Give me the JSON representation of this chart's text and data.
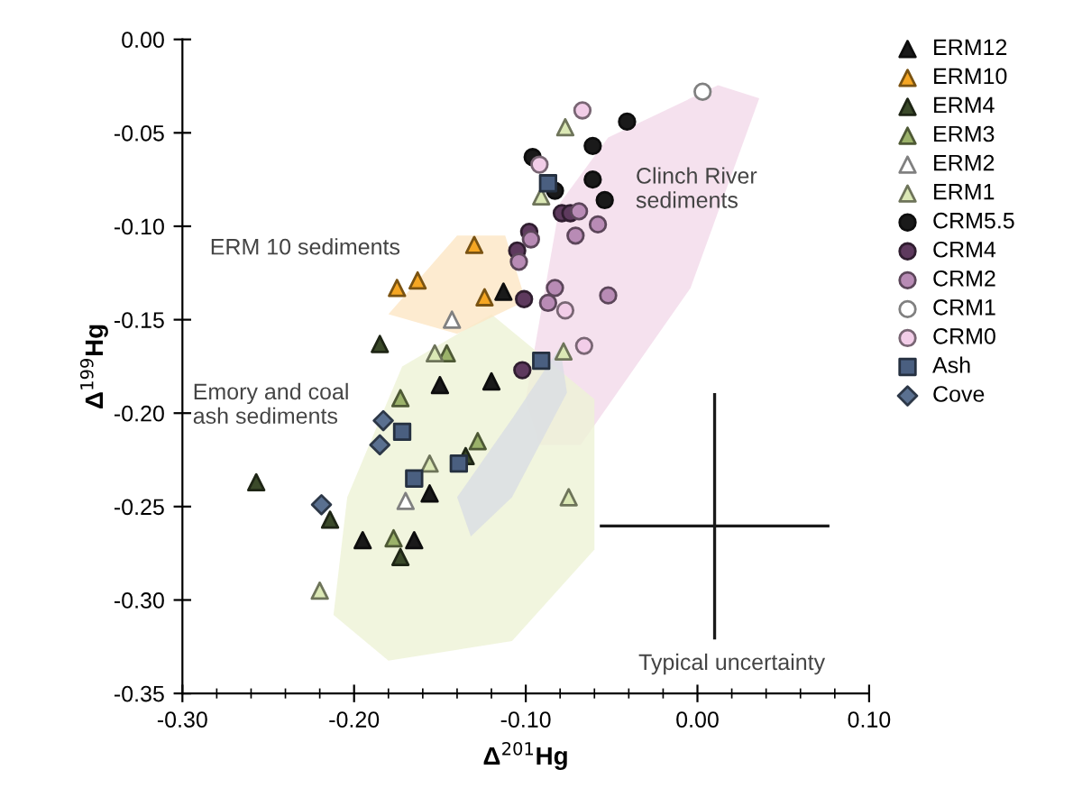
{
  "chart_data": {
    "type": "scatter",
    "xlabel": "Δ$^{201}$Hg",
    "ylabel": "Δ$^{199}$Hg",
    "xlim": [
      -0.3,
      0.1
    ],
    "ylim": [
      -0.35,
      0.0
    ],
    "xticks": [
      {
        "value": -0.3,
        "label": "-0.30"
      },
      {
        "value": -0.28,
        "label": null
      },
      {
        "value": -0.26,
        "label": null
      },
      {
        "value": -0.24,
        "label": null
      },
      {
        "value": -0.22,
        "label": null
      },
      {
        "value": -0.2,
        "label": "-0.20"
      },
      {
        "value": -0.18,
        "label": null
      },
      {
        "value": -0.16,
        "label": null
      },
      {
        "value": -0.14,
        "label": null
      },
      {
        "value": -0.12,
        "label": null
      },
      {
        "value": -0.1,
        "label": "-0.10"
      },
      {
        "value": -0.08,
        "label": null
      },
      {
        "value": -0.06,
        "label": null
      },
      {
        "value": -0.04,
        "label": null
      },
      {
        "value": -0.02,
        "label": null
      },
      {
        "value": 0.0,
        "label": "0.00"
      },
      {
        "value": 0.02,
        "label": null
      },
      {
        "value": 0.04,
        "label": null
      },
      {
        "value": 0.06,
        "label": null
      },
      {
        "value": 0.08,
        "label": null
      },
      {
        "value": 0.1,
        "label": "0.10"
      }
    ],
    "yticks": [
      {
        "value": 0.0,
        "label": "0.00"
      },
      {
        "value": -0.05,
        "label": "-0.05"
      },
      {
        "value": -0.1,
        "label": "-0.10"
      },
      {
        "value": -0.15,
        "label": "-0.15"
      },
      {
        "value": -0.2,
        "label": "-0.20"
      },
      {
        "value": -0.25,
        "label": "-0.25"
      },
      {
        "value": -0.3,
        "label": "-0.30"
      },
      {
        "value": -0.35,
        "label": "-0.35"
      }
    ],
    "legend": "right",
    "grid": false,
    "series": [
      {
        "name": "ERM12",
        "color": "#1a1a1a",
        "marker": "triangle",
        "x": [
          -0.113,
          -0.15,
          -0.12,
          -0.195,
          -0.165,
          -0.156
        ],
        "values": [
          -0.135,
          -0.185,
          -0.183,
          -0.268,
          -0.268,
          -0.243
        ]
      },
      {
        "name": "ERM10",
        "color": "#f5a623",
        "marker": "triangle",
        "x": [
          -0.175,
          -0.163,
          -0.13,
          -0.124
        ],
        "values": [
          -0.133,
          -0.129,
          -0.11,
          -0.138
        ]
      },
      {
        "name": "ERM4",
        "color": "#3b4a2a",
        "marker": "triangle",
        "x": [
          -0.185,
          -0.257,
          -0.214,
          -0.173,
          -0.135
        ],
        "values": [
          -0.163,
          -0.237,
          -0.257,
          -0.277,
          -0.223
        ]
      },
      {
        "name": "ERM3",
        "color": "#9bb26a",
        "marker": "triangle",
        "x": [
          -0.173,
          -0.146,
          -0.128,
          -0.177
        ],
        "values": [
          -0.192,
          -0.168,
          -0.215,
          -0.267
        ]
      },
      {
        "name": "ERM2",
        "color": "#ffffff",
        "marker": "triangle",
        "x": [
          -0.143,
          -0.17
        ],
        "values": [
          -0.15,
          -0.247
        ]
      },
      {
        "name": "ERM1",
        "color": "#dbe8b5",
        "marker": "triangle",
        "x": [
          -0.153,
          -0.156,
          -0.077,
          -0.078,
          -0.091,
          -0.075,
          -0.22
        ],
        "values": [
          -0.168,
          -0.227,
          -0.047,
          -0.167,
          -0.084,
          -0.245,
          -0.295
        ]
      },
      {
        "name": "CRM5.5",
        "color": "#1a1a1a",
        "marker": "circle",
        "x": [
          -0.041,
          -0.061,
          -0.096,
          -0.061,
          -0.054,
          -0.083
        ],
        "values": [
          -0.044,
          -0.057,
          -0.063,
          -0.075,
          -0.086,
          -0.081
        ]
      },
      {
        "name": "CRM4",
        "color": "#5e3a5e",
        "marker": "circle",
        "x": [
          -0.079,
          -0.098,
          -0.105,
          -0.101,
          -0.102,
          -0.074
        ],
        "values": [
          -0.093,
          -0.103,
          -0.113,
          -0.139,
          -0.177,
          -0.093
        ]
      },
      {
        "name": "CRM2",
        "color": "#b88bb5",
        "marker": "circle",
        "x": [
          -0.069,
          -0.071,
          -0.058,
          -0.097,
          -0.104,
          -0.083,
          -0.087,
          -0.052
        ],
        "values": [
          -0.092,
          -0.105,
          -0.099,
          -0.107,
          -0.119,
          -0.133,
          -0.141,
          -0.137
        ]
      },
      {
        "name": "CRM1",
        "color": "#ffffff",
        "marker": "circle",
        "x": [
          0.003
        ],
        "values": [
          -0.028
        ]
      },
      {
        "name": "CRM0",
        "color": "#f2cde8",
        "marker": "circle",
        "x": [
          -0.067,
          -0.092,
          -0.066,
          -0.077
        ],
        "values": [
          -0.038,
          -0.067,
          -0.164,
          -0.145
        ]
      },
      {
        "name": "Ash",
        "color": "#4a5f80",
        "marker": "square",
        "x": [
          -0.087,
          -0.091,
          -0.172,
          -0.139,
          -0.165
        ],
        "values": [
          -0.077,
          -0.172,
          -0.21,
          -0.227,
          -0.235
        ]
      },
      {
        "name": "Cove",
        "color": "#5a7090",
        "marker": "diamond",
        "x": [
          -0.183,
          -0.185,
          -0.219
        ],
        "values": [
          -0.204,
          -0.217,
          -0.249
        ]
      }
    ],
    "annotations": [
      "ERM 10 sediments",
      "Clinch River\nsediments",
      "Emory and coal\nash sediments",
      "Typical uncertainty"
    ]
  }
}
